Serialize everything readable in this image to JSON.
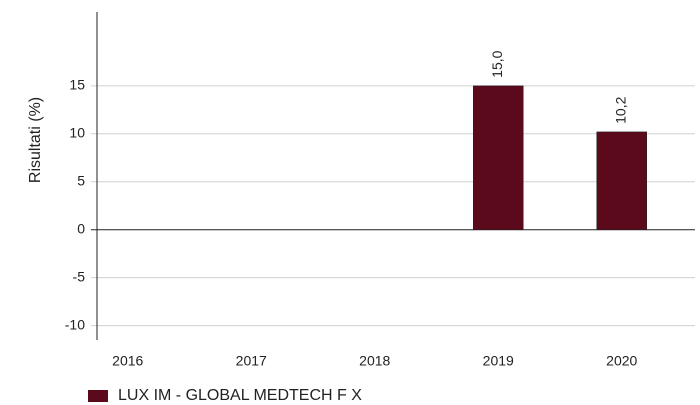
{
  "chart_data": {
    "type": "bar",
    "y_label": "Risultati (%)",
    "categories": [
      "2016",
      "2017",
      "2018",
      "2019",
      "2020"
    ],
    "series": [
      {
        "name": "LUX IM - GLOBAL MEDTECH F X",
        "color": "#5a0a1a",
        "values": [
          null,
          null,
          null,
          15.0,
          10.2
        ],
        "value_labels": [
          null,
          null,
          null,
          "15,0",
          "10,2"
        ]
      }
    ],
    "ylim": [
      -11.5,
      22.7
    ],
    "yticks": [
      -10,
      -5,
      0,
      5,
      10,
      15
    ],
    "grid": true,
    "legend": "bottom-left"
  }
}
